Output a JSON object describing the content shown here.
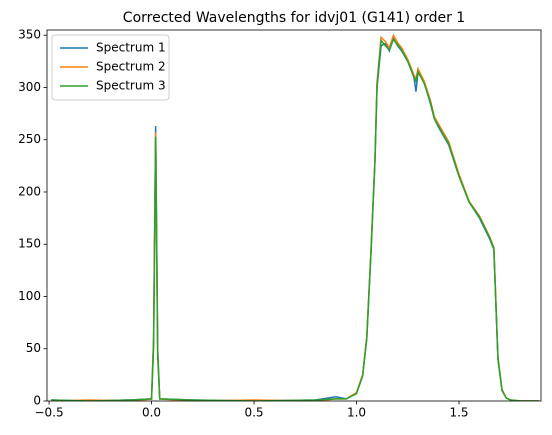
{
  "chart_data": {
    "type": "line",
    "title": "Corrected Wavelengths for idvj01 (G141) order 1",
    "x": [
      -0.49,
      -0.3,
      -0.1,
      0.0,
      0.01,
      0.02,
      0.03,
      0.04,
      0.2,
      0.5,
      0.8,
      0.9,
      0.95,
      1.0,
      1.03,
      1.05,
      1.07,
      1.09,
      1.1,
      1.12,
      1.14,
      1.16,
      1.18,
      1.2,
      1.22,
      1.25,
      1.28,
      1.29,
      1.3,
      1.33,
      1.36,
      1.38,
      1.4,
      1.45,
      1.5,
      1.55,
      1.6,
      1.65,
      1.67,
      1.69,
      1.71,
      1.73,
      1.75,
      1.8,
      1.89
    ],
    "series": [
      {
        "name": "Spectrum 1",
        "color": "#1f77b4",
        "values": [
          1,
          0,
          1,
          2,
          60,
          263,
          50,
          2,
          1,
          0,
          1,
          4,
          2,
          8,
          25,
          60,
          140,
          230,
          300,
          340,
          342,
          335,
          347,
          340,
          335,
          325,
          310,
          296,
          315,
          305,
          285,
          270,
          262,
          245,
          215,
          190,
          175,
          155,
          145,
          40,
          10,
          3,
          1,
          0,
          0
        ]
      },
      {
        "name": "Spectrum 2",
        "color": "#ff7f0e",
        "values": [
          0,
          1,
          0,
          2,
          55,
          257,
          45,
          2,
          0,
          1,
          0,
          2,
          2,
          8,
          25,
          62,
          142,
          232,
          305,
          348,
          344,
          338,
          350,
          343,
          338,
          327,
          312,
          308,
          318,
          306,
          288,
          272,
          265,
          248,
          217,
          191,
          177,
          157,
          147,
          42,
          11,
          3,
          1,
          0,
          0
        ]
      },
      {
        "name": "Spectrum 3",
        "color": "#2ca02c",
        "values": [
          1,
          0,
          1,
          2,
          52,
          253,
          44,
          2,
          1,
          0,
          1,
          2,
          2,
          7,
          24,
          60,
          140,
          230,
          302,
          345,
          340,
          336,
          346,
          341,
          336,
          325,
          310,
          306,
          315,
          304,
          286,
          270,
          263,
          246,
          215,
          190,
          176,
          156,
          146,
          41,
          10,
          3,
          1,
          0,
          0
        ]
      }
    ],
    "xlim": [
      -0.51,
      1.9
    ],
    "ylim": [
      0,
      355
    ],
    "xticks": [
      {
        "value": -0.5,
        "label": "−0.5"
      },
      {
        "value": 0,
        "label": "0.0"
      },
      0.5,
      {
        "value": 1,
        "label": "1.0"
      },
      1.5
    ],
    "yticks": [
      0,
      50,
      100,
      150,
      200,
      250,
      300,
      350
    ],
    "legend": "upper left"
  }
}
